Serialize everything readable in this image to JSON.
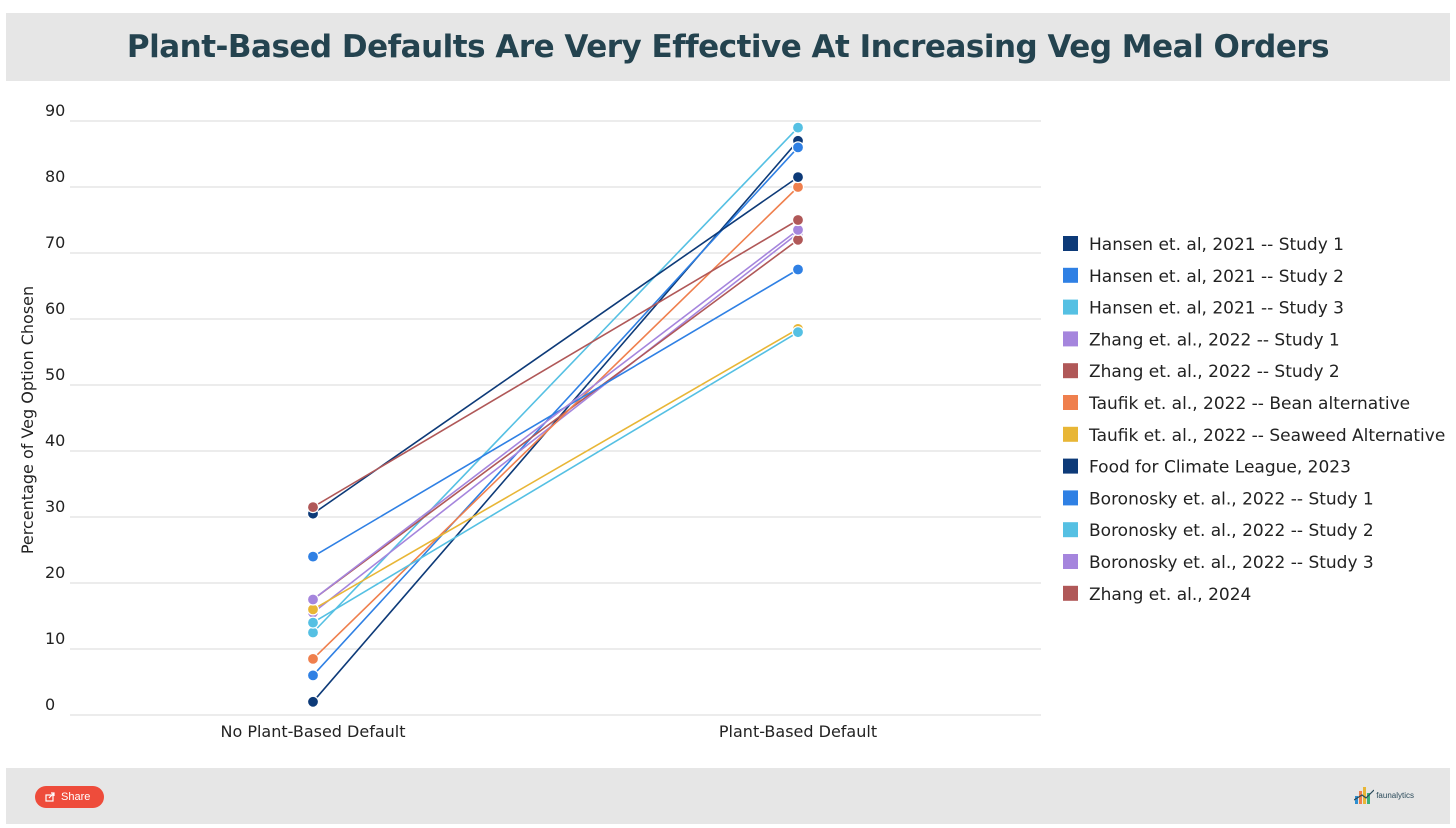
{
  "header": {
    "title": "Plant-Based Defaults Are Very Effective At Increasing Veg Meal Orders"
  },
  "footer": {
    "share_label": "Share",
    "brand_name": "faunalytics"
  },
  "chart_data": {
    "type": "line",
    "title": "Plant-Based Defaults Are Very Effective At Increasing Veg Meal Orders",
    "xlabel": "",
    "ylabel": "Percentage of Veg Option Chosen",
    "categories": [
      "No Plant-Based Default",
      "Plant-Based Default"
    ],
    "ylim": [
      0,
      90
    ],
    "yticks": [
      0,
      10,
      20,
      30,
      40,
      50,
      60,
      70,
      80,
      90
    ],
    "grid": true,
    "legend_position": "right",
    "series": [
      {
        "name": "Hansen et. al, 2021 -- Study 1",
        "color": "#0d3a78",
        "values": [
          2,
          87
        ]
      },
      {
        "name": "Hansen et. al, 2021 -- Study 2",
        "color": "#2f80e4",
        "values": [
          6,
          86
        ]
      },
      {
        "name": "Hansen et. al, 2021 -- Study 3",
        "color": "#55c0e3",
        "values": [
          12.5,
          89
        ]
      },
      {
        "name": "Zhang et. al., 2022 -- Study 1",
        "color": "#a585dd",
        "values": [
          15.5,
          73
        ]
      },
      {
        "name": "Zhang et. al., 2022 -- Study 2",
        "color": "#b05858",
        "values": [
          17.5,
          72
        ]
      },
      {
        "name": "Taufik et. al., 2022 -- Bean alternative",
        "color": "#ef7f4d",
        "values": [
          8.5,
          80
        ]
      },
      {
        "name": "Taufik et. al., 2022 -- Seaweed Alternative",
        "color": "#e8b636",
        "values": [
          16,
          58.5
        ]
      },
      {
        "name": "Food for Climate League, 2023",
        "color": "#0d3a78",
        "values": [
          30.5,
          81.5
        ]
      },
      {
        "name": "Boronosky et. al., 2022 -- Study 1",
        "color": "#2f80e4",
        "values": [
          24,
          67.5
        ]
      },
      {
        "name": "Boronosky et. al., 2022 -- Study 2",
        "color": "#55c0e3",
        "values": [
          14,
          58
        ]
      },
      {
        "name": "Boronosky et. al., 2022 -- Study 3",
        "color": "#a585dd",
        "values": [
          17.5,
          73.5
        ]
      },
      {
        "name": "Zhang et. al., 2024",
        "color": "#b05858",
        "values": [
          31.5,
          75
        ]
      }
    ]
  }
}
